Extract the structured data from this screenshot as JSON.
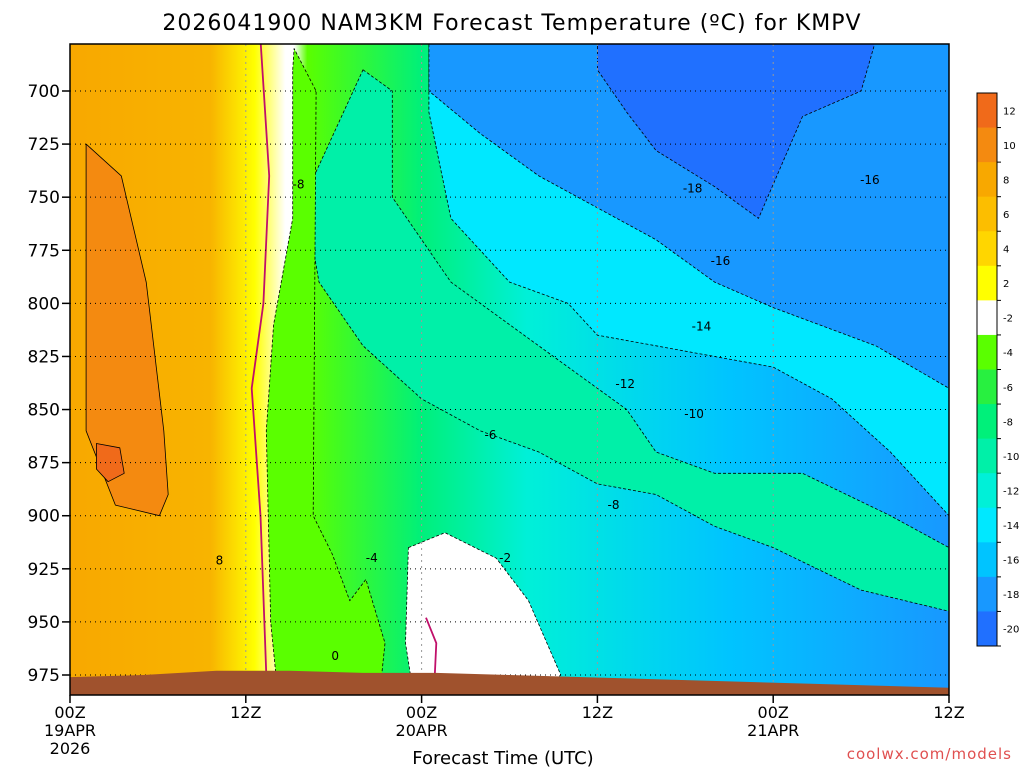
{
  "chart_data": {
    "type": "contour",
    "title": "2026041900 NAM3KM Forecast Temperature (ºC) for KMPV",
    "xlabel": "Forecast Time (UTC)",
    "credit": "coolwx.com/models",
    "x_ticks": [
      {
        "hours": 0,
        "lines": [
          "00Z",
          "19APR",
          "2026"
        ]
      },
      {
        "hours": 12,
        "lines": [
          "12Z"
        ]
      },
      {
        "hours": 24,
        "lines": [
          "00Z",
          "20APR"
        ]
      },
      {
        "hours": 36,
        "lines": [
          "12Z"
        ]
      },
      {
        "hours": 48,
        "lines": [
          "00Z",
          "21APR"
        ]
      },
      {
        "hours": 60,
        "lines": [
          "12Z"
        ]
      }
    ],
    "xlim": [
      0,
      60
    ],
    "y_levels_hPa": [
      700,
      725,
      750,
      775,
      800,
      825,
      850,
      875,
      900,
      925,
      950,
      975
    ],
    "ylim_hPa": [
      676,
      985
    ],
    "colorbar": {
      "ticks": [
        12,
        10,
        8,
        6,
        4,
        2,
        -2,
        -4,
        -6,
        -8,
        -10,
        -12,
        -14,
        -16,
        -18,
        -20
      ],
      "bins": [
        {
          "min": 12,
          "max": 14,
          "color": "#f06a1a"
        },
        {
          "min": 10,
          "max": 12,
          "color": "#f48a10"
        },
        {
          "min": 8,
          "max": 10,
          "color": "#f8a800"
        },
        {
          "min": 6,
          "max": 8,
          "color": "#fcbe00"
        },
        {
          "min": 4,
          "max": 6,
          "color": "#ffd600"
        },
        {
          "min": 2,
          "max": 4,
          "color": "#ffff00"
        },
        {
          "min": -2,
          "max": 2,
          "color": "#ffffff"
        },
        {
          "min": -4,
          "max": -2,
          "color": "#5aff00"
        },
        {
          "min": -6,
          "max": -4,
          "color": "#28f040"
        },
        {
          "min": -8,
          "max": -6,
          "color": "#00f07a"
        },
        {
          "min": -10,
          "max": -8,
          "color": "#00f0a8"
        },
        {
          "min": -12,
          "max": -10,
          "color": "#00f0d8"
        },
        {
          "min": -14,
          "max": -12,
          "color": "#00e8ff"
        },
        {
          "min": -16,
          "max": -14,
          "color": "#00c4ff"
        },
        {
          "min": -18,
          "max": -16,
          "color": "#1898ff"
        },
        {
          "min": -20,
          "max": -18,
          "color": "#2070ff"
        }
      ]
    },
    "contour_labels": [
      {
        "text": "-8",
        "hours": 15.6,
        "hPa": 744
      },
      {
        "text": "-18",
        "hours": 42.5,
        "hPa": 746
      },
      {
        "text": "-16",
        "hours": 54.6,
        "hPa": 742
      },
      {
        "text": "-16",
        "hours": 44.4,
        "hPa": 780
      },
      {
        "text": "-14",
        "hours": 43.1,
        "hPa": 811
      },
      {
        "text": "-12",
        "hours": 37.9,
        "hPa": 838
      },
      {
        "text": "-10",
        "hours": 42.6,
        "hPa": 852
      },
      {
        "text": "-6",
        "hours": 28.7,
        "hPa": 862
      },
      {
        "text": "-8",
        "hours": 37.1,
        "hPa": 895
      },
      {
        "text": "-4",
        "hours": 20.6,
        "hPa": 920
      },
      {
        "text": "-2",
        "hours": 29.7,
        "hPa": 920
      },
      {
        "text": "8",
        "hours": 10.2,
        "hPa": 921
      },
      {
        "text": "0",
        "hours": 18.1,
        "hPa": 966
      }
    ],
    "temperature_regions": [
      {
        "name": "warm-core-12",
        "color": "#f48a10",
        "points": [
          [
            1.1,
            725
          ],
          [
            3.5,
            740
          ],
          [
            5.2,
            790
          ],
          [
            6.4,
            860
          ],
          [
            6.7,
            890
          ],
          [
            6.1,
            900
          ],
          [
            3.1,
            895
          ],
          [
            1.1,
            860
          ]
        ]
      },
      {
        "name": "warm-pocket-14",
        "color": "#f06a1a",
        "points": [
          [
            1.8,
            866
          ],
          [
            3.4,
            868
          ],
          [
            3.7,
            880
          ],
          [
            2.6,
            884
          ],
          [
            1.8,
            878
          ]
        ]
      },
      {
        "name": "frozen-aloft",
        "color": "#00e8ff",
        "points": [
          [
            24.5,
            676
          ],
          [
            60,
            676
          ],
          [
            60,
            900
          ],
          [
            56,
            870
          ],
          [
            52,
            845
          ],
          [
            48,
            830
          ],
          [
            44,
            825
          ],
          [
            40,
            820
          ],
          [
            36,
            815
          ],
          [
            34,
            800
          ],
          [
            30,
            790
          ],
          [
            26,
            760
          ],
          [
            24.5,
            710
          ]
        ]
      },
      {
        "name": "cold-core-16",
        "color": "#1898ff",
        "points": [
          [
            24.5,
            676
          ],
          [
            60,
            676
          ],
          [
            60,
            840
          ],
          [
            55,
            820
          ],
          [
            48,
            802
          ],
          [
            44,
            790
          ],
          [
            40,
            770
          ],
          [
            36,
            755
          ],
          [
            32,
            740
          ],
          [
            28,
            720
          ],
          [
            24.5,
            700
          ]
        ]
      },
      {
        "name": "cold-core-18",
        "color": "#2070ff",
        "points": [
          [
            36,
            676
          ],
          [
            55,
            676
          ],
          [
            54,
            700
          ],
          [
            50,
            712
          ],
          [
            47,
            760
          ],
          [
            44,
            745
          ],
          [
            40,
            728
          ],
          [
            38,
            710
          ],
          [
            36,
            690
          ]
        ]
      },
      {
        "name": "mid-warm-band",
        "color": "#00f0a8",
        "points": [
          [
            20,
            690
          ],
          [
            22,
            700
          ],
          [
            22,
            750
          ],
          [
            26,
            790
          ],
          [
            30,
            810
          ],
          [
            34,
            830
          ],
          [
            38,
            850
          ],
          [
            40,
            870
          ],
          [
            44,
            880
          ],
          [
            50,
            880
          ],
          [
            56,
            900
          ],
          [
            60,
            915
          ],
          [
            60,
            945
          ],
          [
            54,
            935
          ],
          [
            48,
            915
          ],
          [
            44,
            905
          ],
          [
            40,
            890
          ],
          [
            36,
            885
          ],
          [
            32,
            870
          ],
          [
            28,
            860
          ],
          [
            24,
            845
          ],
          [
            20,
            820
          ],
          [
            17,
            790
          ],
          [
            16,
            750
          ]
        ]
      },
      {
        "name": "low-level-thaw",
        "color": "#ffffff",
        "points": [
          [
            23.1,
            915
          ],
          [
            25.6,
            908
          ],
          [
            29.1,
            920
          ],
          [
            31.3,
            940
          ],
          [
            33.5,
            975
          ],
          [
            32.2,
            982
          ],
          [
            23.4,
            982
          ],
          [
            22.9,
            960
          ]
        ]
      },
      {
        "name": "surface-slush",
        "color": "#5aff00",
        "points": [
          [
            15.2,
            690
          ],
          [
            15.3,
            680
          ],
          [
            16.8,
            700
          ],
          [
            16.6,
            900
          ],
          [
            17.9,
            918
          ],
          [
            19.1,
            940
          ],
          [
            20.2,
            930
          ],
          [
            21.5,
            960
          ],
          [
            21.2,
            980
          ],
          [
            14.2,
            985
          ],
          [
            13.7,
            950
          ],
          [
            13.4,
            860
          ],
          [
            13.9,
            810
          ],
          [
            15.2,
            760
          ]
        ]
      }
    ],
    "terrain": {
      "color": "#a0522d",
      "hPa_top": [
        976,
        975,
        973,
        973,
        974,
        974,
        975,
        976,
        977,
        978,
        979,
        980,
        981
      ]
    }
  }
}
